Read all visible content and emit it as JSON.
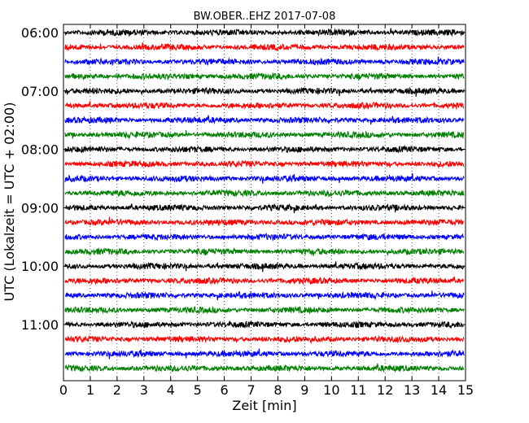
{
  "chart_data": {
    "type": "line",
    "title": "BW.OBER..EHZ 2017-07-08",
    "xlabel": "Zeit  [min]",
    "ylabel": "UTC (Lokalzeit = UTC + 02:00)",
    "xlim": [
      0,
      15
    ],
    "x_ticks": [
      "0",
      "1",
      "2",
      "3",
      "4",
      "5",
      "6",
      "7",
      "8",
      "9",
      "10",
      "11",
      "12",
      "13",
      "14",
      "15"
    ],
    "y_ticks": [
      "06:00",
      "07:00",
      "08:00",
      "09:00",
      "10:00",
      "11:00"
    ],
    "grid": "vertical dotted",
    "trace_interval_min": 15,
    "series": [
      {
        "start": "06:00",
        "color": "#000000"
      },
      {
        "start": "06:15",
        "color": "#ff0000"
      },
      {
        "start": "06:30",
        "color": "#0000ff"
      },
      {
        "start": "06:45",
        "color": "#008000"
      },
      {
        "start": "07:00",
        "color": "#000000"
      },
      {
        "start": "07:15",
        "color": "#ff0000"
      },
      {
        "start": "07:30",
        "color": "#0000ff"
      },
      {
        "start": "07:45",
        "color": "#008000"
      },
      {
        "start": "08:00",
        "color": "#000000"
      },
      {
        "start": "08:15",
        "color": "#ff0000"
      },
      {
        "start": "08:30",
        "color": "#0000ff"
      },
      {
        "start": "08:45",
        "color": "#008000"
      },
      {
        "start": "09:00",
        "color": "#000000"
      },
      {
        "start": "09:15",
        "color": "#ff0000"
      },
      {
        "start": "09:30",
        "color": "#0000ff"
      },
      {
        "start": "09:45",
        "color": "#008000"
      },
      {
        "start": "10:00",
        "color": "#000000"
      },
      {
        "start": "10:15",
        "color": "#ff0000"
      },
      {
        "start": "10:30",
        "color": "#0000ff"
      },
      {
        "start": "10:45",
        "color": "#008000"
      },
      {
        "start": "11:00",
        "color": "#000000"
      },
      {
        "start": "11:15",
        "color": "#ff0000"
      },
      {
        "start": "11:30",
        "color": "#0000ff"
      },
      {
        "start": "11:45",
        "color": "#008000"
      }
    ]
  }
}
